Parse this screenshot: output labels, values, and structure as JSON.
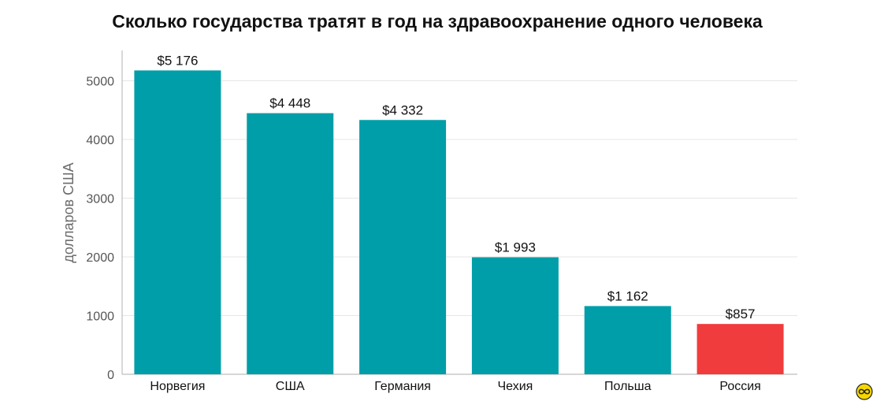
{
  "title": "Сколько государства тратят в год на здравоохранение одного человека",
  "chart_data": {
    "type": "bar",
    "title": "Сколько государства тратят в год на здравоохранение одного человека",
    "xlabel": "",
    "ylabel": "долларов США",
    "categories": [
      "Норвегия",
      "США",
      "Германия",
      "Чехия",
      "Польша",
      "Россия"
    ],
    "values": [
      5176,
      4448,
      4332,
      1993,
      1162,
      857
    ],
    "data_labels": [
      "$5 176",
      "$4 448",
      "$4 332",
      "$1 993",
      "$1 162",
      "$857"
    ],
    "yticks": [
      0,
      1000,
      2000,
      3000,
      4000,
      5000
    ],
    "ylim": [
      0,
      5350
    ],
    "grid": true,
    "legend": "none",
    "colors": {
      "bar": "#009ea8",
      "highlight": "#f03c3c",
      "highlight_category": "Россия",
      "grid": "#e6e6e6",
      "axis": "#bdbdbd",
      "tick_text": "#555555",
      "ylabel_text": "#6b6b6b"
    }
  },
  "logo": {
    "icon": "infinity-badge-icon",
    "color": "#f5d700"
  }
}
